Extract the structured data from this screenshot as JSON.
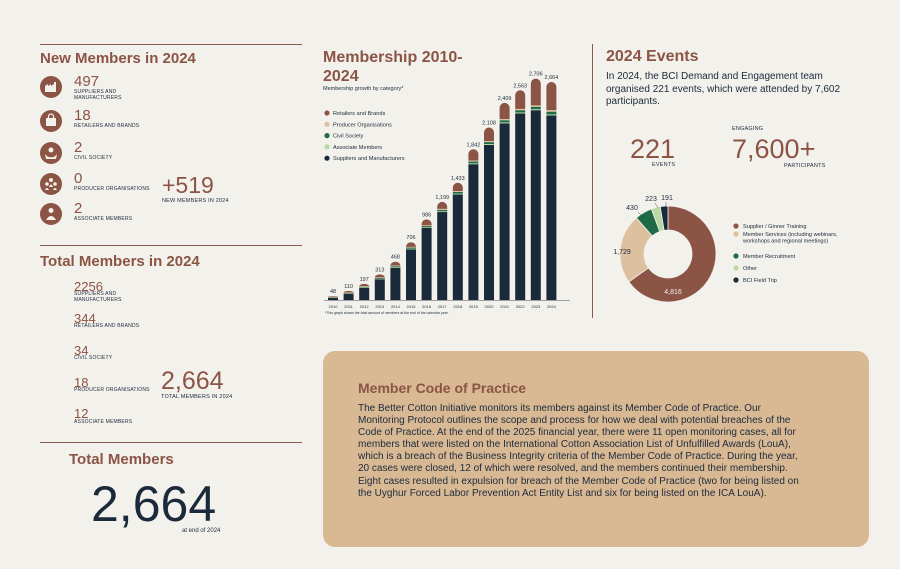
{
  "new_members": {
    "title": "New Members in 2024",
    "items": [
      {
        "value": "497",
        "label": "SUPPLIERS AND MANUFACTURERS",
        "icon": "factory-icon"
      },
      {
        "value": "18",
        "label": "RETAILERS AND BRANDS",
        "icon": "shopping-bag-icon"
      },
      {
        "value": "2",
        "label": "CIVIL SOCIETY",
        "icon": "hands-icon"
      },
      {
        "value": "0",
        "label": "PRODUCER ORGANISATIONS",
        "icon": "people-group-icon"
      },
      {
        "value": "2",
        "label": "ASSOCIATE MEMBERS",
        "icon": "person-icon"
      }
    ],
    "total_value": "+519",
    "total_label": "NEW MEMBERS IN 2024"
  },
  "total_members_2024": {
    "title": "Total Members in 2024",
    "items": [
      {
        "value": "2256",
        "label": "SUPPLIERS AND MANUFACTURERS"
      },
      {
        "value": "344",
        "label": "RETAILERS AND BRANDS"
      },
      {
        "value": "34",
        "label": "CIVIL SOCIETY"
      },
      {
        "value": "18",
        "label": "PRODUCER ORGANISATIONS"
      },
      {
        "value": "12",
        "label": "ASSOCIATE MEMBERS"
      }
    ],
    "total_value": "2,664",
    "total_label": "TOTAL MEMBERS IN 2024"
  },
  "total_members": {
    "title": "Total Members",
    "value": "2,664",
    "label": "at end of 2024"
  },
  "events": {
    "title": "2024 Events",
    "description": "In 2024, the BCI Demand and Engagement team organised 221 events, which were attended by 7,602 participants.",
    "events_value": "221",
    "events_label": "EVENTS",
    "engaging_label": "ENGAGING",
    "participants_value": "7,600+",
    "participants_label": "PARTICIPANTS"
  },
  "code": {
    "title": "Member Code of Practice",
    "body": "The Better Cotton Initiative monitors its members against its Member Code of Practice. Our Monitoring Protocol outlines the scope and process for how we deal with potential breaches of the Code of Practice. At the end of the 2025 financial year, there were 11 open monitoring cases, all for members that were listed on the International Cotton Association List of Unfulfilled Awards (LouA), which is a breach of the Business Integrity criteria of the Member Code of Practice. During the year, 20 cases were closed, 12 of which were resolved, and the members continued their membership. Eight cases resulted in expulsion for breach of the Member Code of Practice (two for being listed on the Uyghur Forced Labor Prevention Act Entity List and six for being listed on the ICA LouA)."
  },
  "colors": {
    "brown": "#8b5444",
    "navy": "#1b2a3b",
    "tan": "#dcc0a0",
    "green": "#1f6b48",
    "light_green": "#b8d9a4"
  },
  "chart_data": [
    {
      "type": "bar",
      "stacked": true,
      "title": "Membership 2010-2024",
      "subtitle": "Membership growth by category*",
      "footnote": "*This graph shows the total amount of members at the end of the calendar year.",
      "categories": [
        "2010",
        "2011",
        "2012",
        "2013",
        "2014",
        "2015",
        "2016",
        "2017",
        "2018",
        "2019",
        "2020",
        "2021",
        "2022",
        "2023",
        "2024"
      ],
      "totals": [
        48,
        110,
        197,
        313,
        468,
        706,
        986,
        1199,
        1433,
        1842,
        2108,
        2409,
        2563,
        2706,
        2664
      ],
      "total_labels": [
        "48",
        "110",
        "197",
        "313",
        "468",
        "706",
        "986",
        "1,199",
        "1,433",
        "1,842",
        "2,108",
        "2,409",
        "2,563",
        "2,706",
        "2,664"
      ],
      "series": [
        {
          "name": "Suppliers and Manufacturers",
          "color": "#1b2a3b",
          "values": [
            30,
            78,
            150,
            255,
            395,
            620,
            880,
            1075,
            1290,
            1660,
            1895,
            2160,
            2280,
            2320,
            2256
          ]
        },
        {
          "name": "Associate Members",
          "color": "#b8d9a4",
          "values": [
            2,
            3,
            4,
            5,
            6,
            7,
            8,
            9,
            10,
            10,
            11,
            11,
            12,
            12,
            12
          ]
        },
        {
          "name": "Civil Society",
          "color": "#1f6b48",
          "values": [
            4,
            6,
            8,
            10,
            12,
            14,
            16,
            18,
            20,
            22,
            24,
            26,
            28,
            30,
            34
          ]
        },
        {
          "name": "Producer Organisations",
          "color": "#dcc0a0",
          "values": [
            4,
            5,
            6,
            7,
            8,
            9,
            10,
            11,
            12,
            13,
            14,
            15,
            16,
            17,
            18
          ]
        },
        {
          "name": "Retailers and Brands",
          "color": "#8b5444",
          "values": [
            8,
            18,
            29,
            36,
            47,
            56,
            72,
            86,
            101,
            137,
            164,
            197,
            227,
            327,
            344
          ]
        }
      ],
      "legend": [
        "Retailers and Brands",
        "Producer Organisations",
        "Civil Society",
        "Associate Members",
        "Suppliers and Manufacturers"
      ],
      "legend_colors": [
        "#8b5444",
        "#dcc0a0",
        "#1f6b48",
        "#b8d9a4",
        "#1b2a3b"
      ]
    },
    {
      "type": "pie",
      "donut": true,
      "labels": [
        "Supplier / Ginner Training",
        "Member Services (including webinars, workshops and regional meetings)",
        "Member Recruitment",
        "Other",
        "BCI Field Trip"
      ],
      "values": [
        4816,
        1729,
        430,
        223,
        191
      ],
      "value_labels": [
        "4,816",
        "1,729",
        "430",
        "223",
        "191"
      ],
      "colors": [
        "#8b5444",
        "#dcc0a0",
        "#1f6b48",
        "#b8d9a4",
        "#1b2a3b"
      ]
    }
  ]
}
